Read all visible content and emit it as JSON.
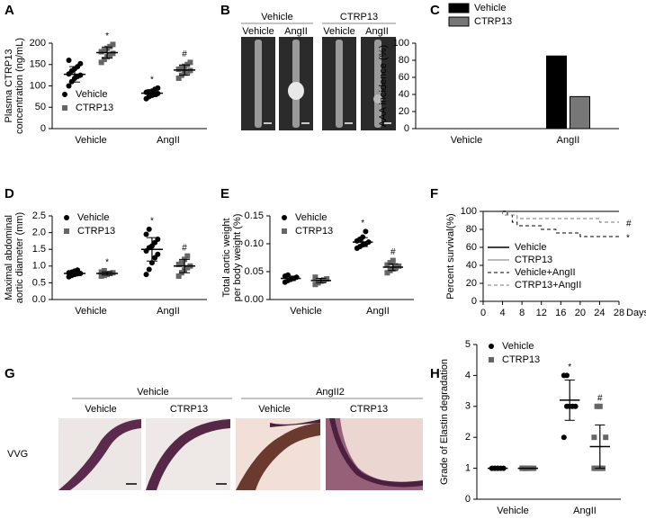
{
  "chart_data": [
    {
      "panel": "A",
      "type": "dotplot",
      "ylabel": [
        "Plasma CTRP13",
        "concentration (ng/mL)"
      ],
      "categories": [
        "Vehicle",
        "AngII"
      ],
      "ylim": [
        0,
        200
      ],
      "yticks": [
        0,
        50,
        100,
        150,
        200
      ],
      "legend": "lower left",
      "series": [
        {
          "name": "Vehicle",
          "color": "#000000",
          "marker": "circle",
          "values": [
            [
              100,
              110,
              118,
              122,
              125,
              128,
              135,
              140,
              145,
              152,
              160
            ],
            [
              70,
              75,
              78,
              80,
              82,
              85,
              86,
              88,
              92,
              95
            ]
          ],
          "mean": [
            127,
            83
          ],
          "sd": [
            18,
            8
          ],
          "flags": [
            null,
            "*"
          ]
        },
        {
          "name": "CTRP13",
          "color": "#666666",
          "marker": "square",
          "values": [
            [
              155,
              162,
              168,
              172,
              176,
              180,
              183,
              188,
              192,
              197
            ],
            [
              118,
              125,
              130,
              133,
              136,
              139,
              142,
              146,
              150,
              155
            ]
          ],
          "mean": [
            178,
            137
          ],
          "sd": [
            13,
            12
          ],
          "flags": [
            "*",
            "#"
          ]
        }
      ]
    },
    {
      "panel": "C",
      "type": "bar",
      "ylabel": [
        "AAA incidence (%)"
      ],
      "categories": [
        "Vehicle",
        "AngII"
      ],
      "ylim": [
        0,
        100
      ],
      "yticks": [
        0,
        20,
        40,
        60,
        80,
        100
      ],
      "legend": "top",
      "series": [
        {
          "name": "Vehicle",
          "color": "#000000",
          "values": [
            0,
            85
          ]
        },
        {
          "name": "CTRP13",
          "color": "#777777",
          "values": [
            0,
            37.5
          ]
        }
      ]
    },
    {
      "panel": "D",
      "type": "dotplot",
      "ylabel": [
        "Maximal abdominal",
        "aortic diameter (mm)"
      ],
      "categories": [
        "Vehicle",
        "AngII"
      ],
      "ylim": [
        0,
        2.5
      ],
      "yticks": [
        {
          "value": 0,
          "label": "0.0"
        },
        0.5,
        {
          "value": 1,
          "label": "1.0"
        },
        1.5,
        {
          "value": 2,
          "label": "2.0"
        },
        2.5
      ],
      "legend": "upper left",
      "series": [
        {
          "name": "Vehicle",
          "color": "#000000",
          "marker": "circle",
          "values": [
            [
              0.68,
              0.72,
              0.75,
              0.77,
              0.78,
              0.8,
              0.82,
              0.85,
              0.88
            ],
            [
              0.75,
              0.9,
              1.1,
              1.25,
              1.35,
              1.45,
              1.55,
              1.6,
              1.7,
              1.8,
              1.95,
              2.1
            ]
          ],
          "mean": [
            0.78,
            1.5
          ],
          "sd": [
            0.06,
            0.35
          ],
          "flags": [
            null,
            "*"
          ]
        },
        {
          "name": "CTRP13",
          "color": "#666666",
          "marker": "square",
          "values": [
            [
              0.7,
              0.72,
              0.75,
              0.78,
              0.8,
              0.82,
              0.86
            ],
            [
              0.7,
              0.8,
              0.88,
              0.95,
              1.0,
              1.05,
              1.1,
              1.2,
              1.3
            ]
          ],
          "mean": [
            0.78,
            1.0
          ],
          "sd": [
            0.05,
            0.2
          ],
          "flags": [
            "*",
            "#"
          ]
        }
      ]
    },
    {
      "panel": "E",
      "type": "dotplot",
      "ylabel": [
        "Total aortic weight",
        "per body weight (%)"
      ],
      "categories": [
        "Vehicle",
        "AngII"
      ],
      "ylim": [
        0,
        0.15
      ],
      "yticks": [
        {
          "value": 0,
          "label": "0.00"
        },
        0.05,
        {
          "value": 0.1,
          "label": "0.10"
        },
        0.15
      ],
      "legend": "upper left",
      "series": [
        {
          "name": "Vehicle",
          "color": "#000000",
          "marker": "circle",
          "values": [
            [
              0.031,
              0.034,
              0.036,
              0.038,
              0.04,
              0.042,
              0.044
            ],
            [
              0.092,
              0.095,
              0.098,
              0.1,
              0.103,
              0.105,
              0.108,
              0.112,
              0.122
            ]
          ],
          "mean": [
            0.038,
            0.103
          ],
          "sd": [
            0.004,
            0.008
          ],
          "flags": [
            null,
            "*"
          ]
        },
        {
          "name": "CTRP13",
          "color": "#666666",
          "marker": "square",
          "values": [
            [
              0.027,
              0.03,
              0.033,
              0.035,
              0.037,
              0.04
            ],
            [
              0.048,
              0.052,
              0.055,
              0.058,
              0.06,
              0.062,
              0.066,
              0.07
            ]
          ],
          "mean": [
            0.034,
            0.058
          ],
          "sd": [
            0.004,
            0.006
          ],
          "flags": [
            null,
            "#"
          ]
        }
      ]
    },
    {
      "panel": "F",
      "type": "line",
      "ylabel": [
        "Percent survival(%)"
      ],
      "xlabel": "Days",
      "xlim": [
        0,
        28
      ],
      "xticks": [
        0,
        4,
        8,
        12,
        16,
        20,
        24,
        28
      ],
      "ylim": [
        0,
        100
      ],
      "yticks": [
        0,
        20,
        40,
        60,
        80,
        100
      ],
      "legend": "lower left",
      "series": [
        {
          "name": "Vehicle",
          "color": "#000000",
          "dash": false,
          "x": [
            0,
            28
          ],
          "values": [
            100,
            100
          ],
          "flag": null
        },
        {
          "name": "CTRP13",
          "color": "#777777",
          "dash": false,
          "x": [
            0,
            28
          ],
          "values": [
            100,
            100
          ],
          "flag": null
        },
        {
          "name": "Vehicle+AngII",
          "color": "#000000",
          "dash": true,
          "x": [
            0,
            5,
            5,
            6,
            6,
            7,
            7,
            12,
            12,
            15,
            15,
            20,
            20,
            28
          ],
          "values": [
            100,
            100,
            96,
            96,
            88,
            88,
            84,
            84,
            80,
            80,
            76,
            76,
            72,
            72
          ],
          "flag": "*"
        },
        {
          "name": "CTRP13+AngII",
          "color": "#777777",
          "dash": true,
          "x": [
            0,
            4,
            4,
            7,
            7,
            24,
            24,
            28
          ],
          "values": [
            100,
            100,
            96,
            96,
            92,
            92,
            88,
            88
          ],
          "flag": "#"
        }
      ]
    },
    {
      "panel": "H",
      "type": "dotplot",
      "ylabel": [
        "Grade of Elastin degradation"
      ],
      "categories": [
        "Vehicle",
        "AngII"
      ],
      "ylim": [
        0,
        5
      ],
      "yticks": [
        0,
        1,
        2,
        3,
        4,
        5
      ],
      "legend": "upper left",
      "series": [
        {
          "name": "Vehicle",
          "color": "#000000",
          "marker": "circle",
          "values": [
            [
              1,
              1,
              1,
              1,
              1,
              1,
              1,
              1
            ],
            [
              2,
              3,
              3,
              3,
              3,
              4,
              4
            ]
          ],
          "mean": [
            1,
            3.2
          ],
          "sd": [
            0,
            0.65
          ],
          "flags": [
            null,
            "*"
          ]
        },
        {
          "name": "CTRP13",
          "color": "#666666",
          "marker": "square",
          "values": [
            [
              1,
              1,
              1,
              1,
              1,
              1,
              1,
              1
            ],
            [
              1,
              1,
              1,
              1,
              2,
              2,
              3,
              3
            ]
          ],
          "mean": [
            1,
            1.7
          ],
          "sd": [
            0,
            0.7
          ],
          "flags": [
            null,
            "#"
          ]
        }
      ]
    }
  ],
  "figures": [
    {
      "panel": "B",
      "groups": [
        {
          "label": "Vehicle",
          "items": [
            "Vehicle",
            "AngII"
          ]
        },
        {
          "label": "CTRP13",
          "items": [
            "Vehicle",
            "AngII"
          ]
        }
      ]
    },
    {
      "panel": "G",
      "row_label": "VVG",
      "groups": [
        {
          "label": "Vehicle",
          "items": [
            "Vehicle",
            "CTRP13"
          ]
        },
        {
          "label": "AngII2",
          "items": [
            "Vehicle",
            "CTRP13"
          ]
        }
      ]
    }
  ]
}
